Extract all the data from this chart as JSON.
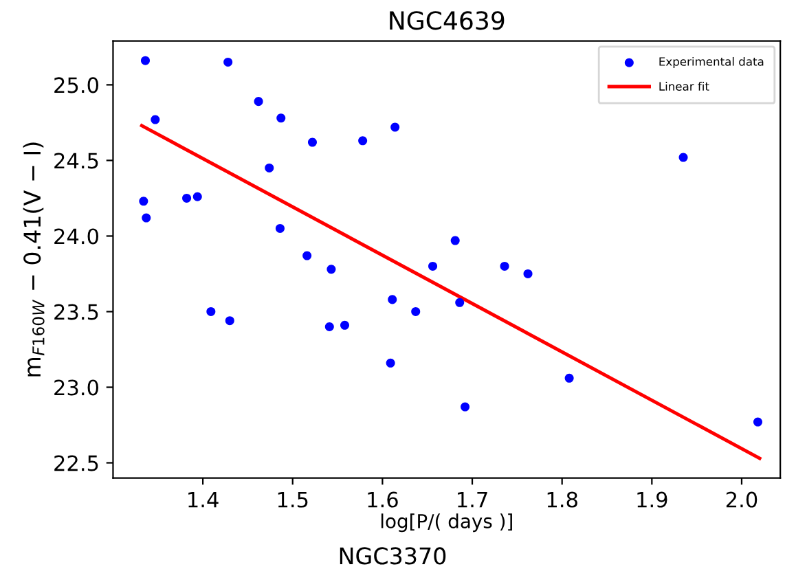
{
  "chart_data": {
    "type": "scatter",
    "title": "NGC4639",
    "xlabel": "log[P/( days )]",
    "ylabel": "m$_{F160W}$ − 0.41(V − I)",
    "annotations": [
      "NGC3370"
    ],
    "series": [
      {
        "name": "Experimental data",
        "color": "#0000ff",
        "marker": "circle",
        "x": [
          1.336,
          1.428,
          1.347,
          1.462,
          1.487,
          1.614,
          1.522,
          1.578,
          1.935,
          1.474,
          1.334,
          1.337,
          1.382,
          1.394,
          1.486,
          1.681,
          1.516,
          1.543,
          1.656,
          1.736,
          1.762,
          1.611,
          1.686,
          1.409,
          1.637,
          1.43,
          1.541,
          1.558,
          1.609,
          1.808,
          1.692,
          2.018
        ],
        "values": [
          25.16,
          25.15,
          24.77,
          24.89,
          24.78,
          24.72,
          24.62,
          24.63,
          24.52,
          24.45,
          24.23,
          24.12,
          24.25,
          24.26,
          24.05,
          23.97,
          23.87,
          23.78,
          23.8,
          23.8,
          23.75,
          23.58,
          23.56,
          23.5,
          23.5,
          23.44,
          23.4,
          23.41,
          23.16,
          23.06,
          22.87,
          22.77
        ]
      },
      {
        "name": "Linear fit",
        "type": "line",
        "color": "#ff0000",
        "x": [
          1.332,
          2.02
        ],
        "values": [
          24.73,
          22.53
        ]
      }
    ],
    "xlim": [
      1.3,
      2.043
    ],
    "ylim": [
      22.4,
      25.29
    ],
    "xticks": [
      1.4,
      1.5,
      1.6,
      1.7,
      1.8,
      1.9,
      {
        "value": 2,
        "label": "2.0"
      }
    ],
    "yticks": [
      22.5,
      {
        "value": 23,
        "label": "23.0"
      },
      23.5,
      {
        "value": 24,
        "label": "24.0"
      },
      24.5,
      {
        "value": 25,
        "label": "25.0"
      }
    ],
    "grid": false,
    "legend": "top right"
  }
}
